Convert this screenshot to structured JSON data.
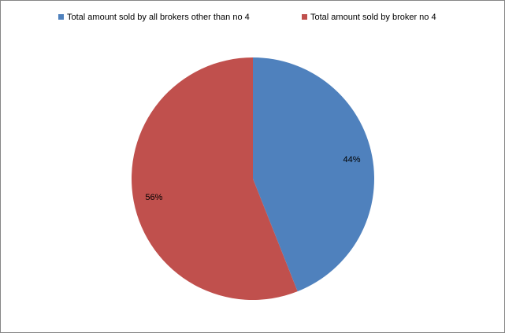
{
  "chart_data": {
    "type": "pie",
    "categories": [
      "Total amount sold by all brokers other than no 4",
      "Total amount sold by broker no 4"
    ],
    "values": [
      44,
      56
    ],
    "value_labels": [
      "44%",
      "56%"
    ],
    "colors": [
      "#4f81bd",
      "#c0504d"
    ],
    "legend": "top"
  }
}
